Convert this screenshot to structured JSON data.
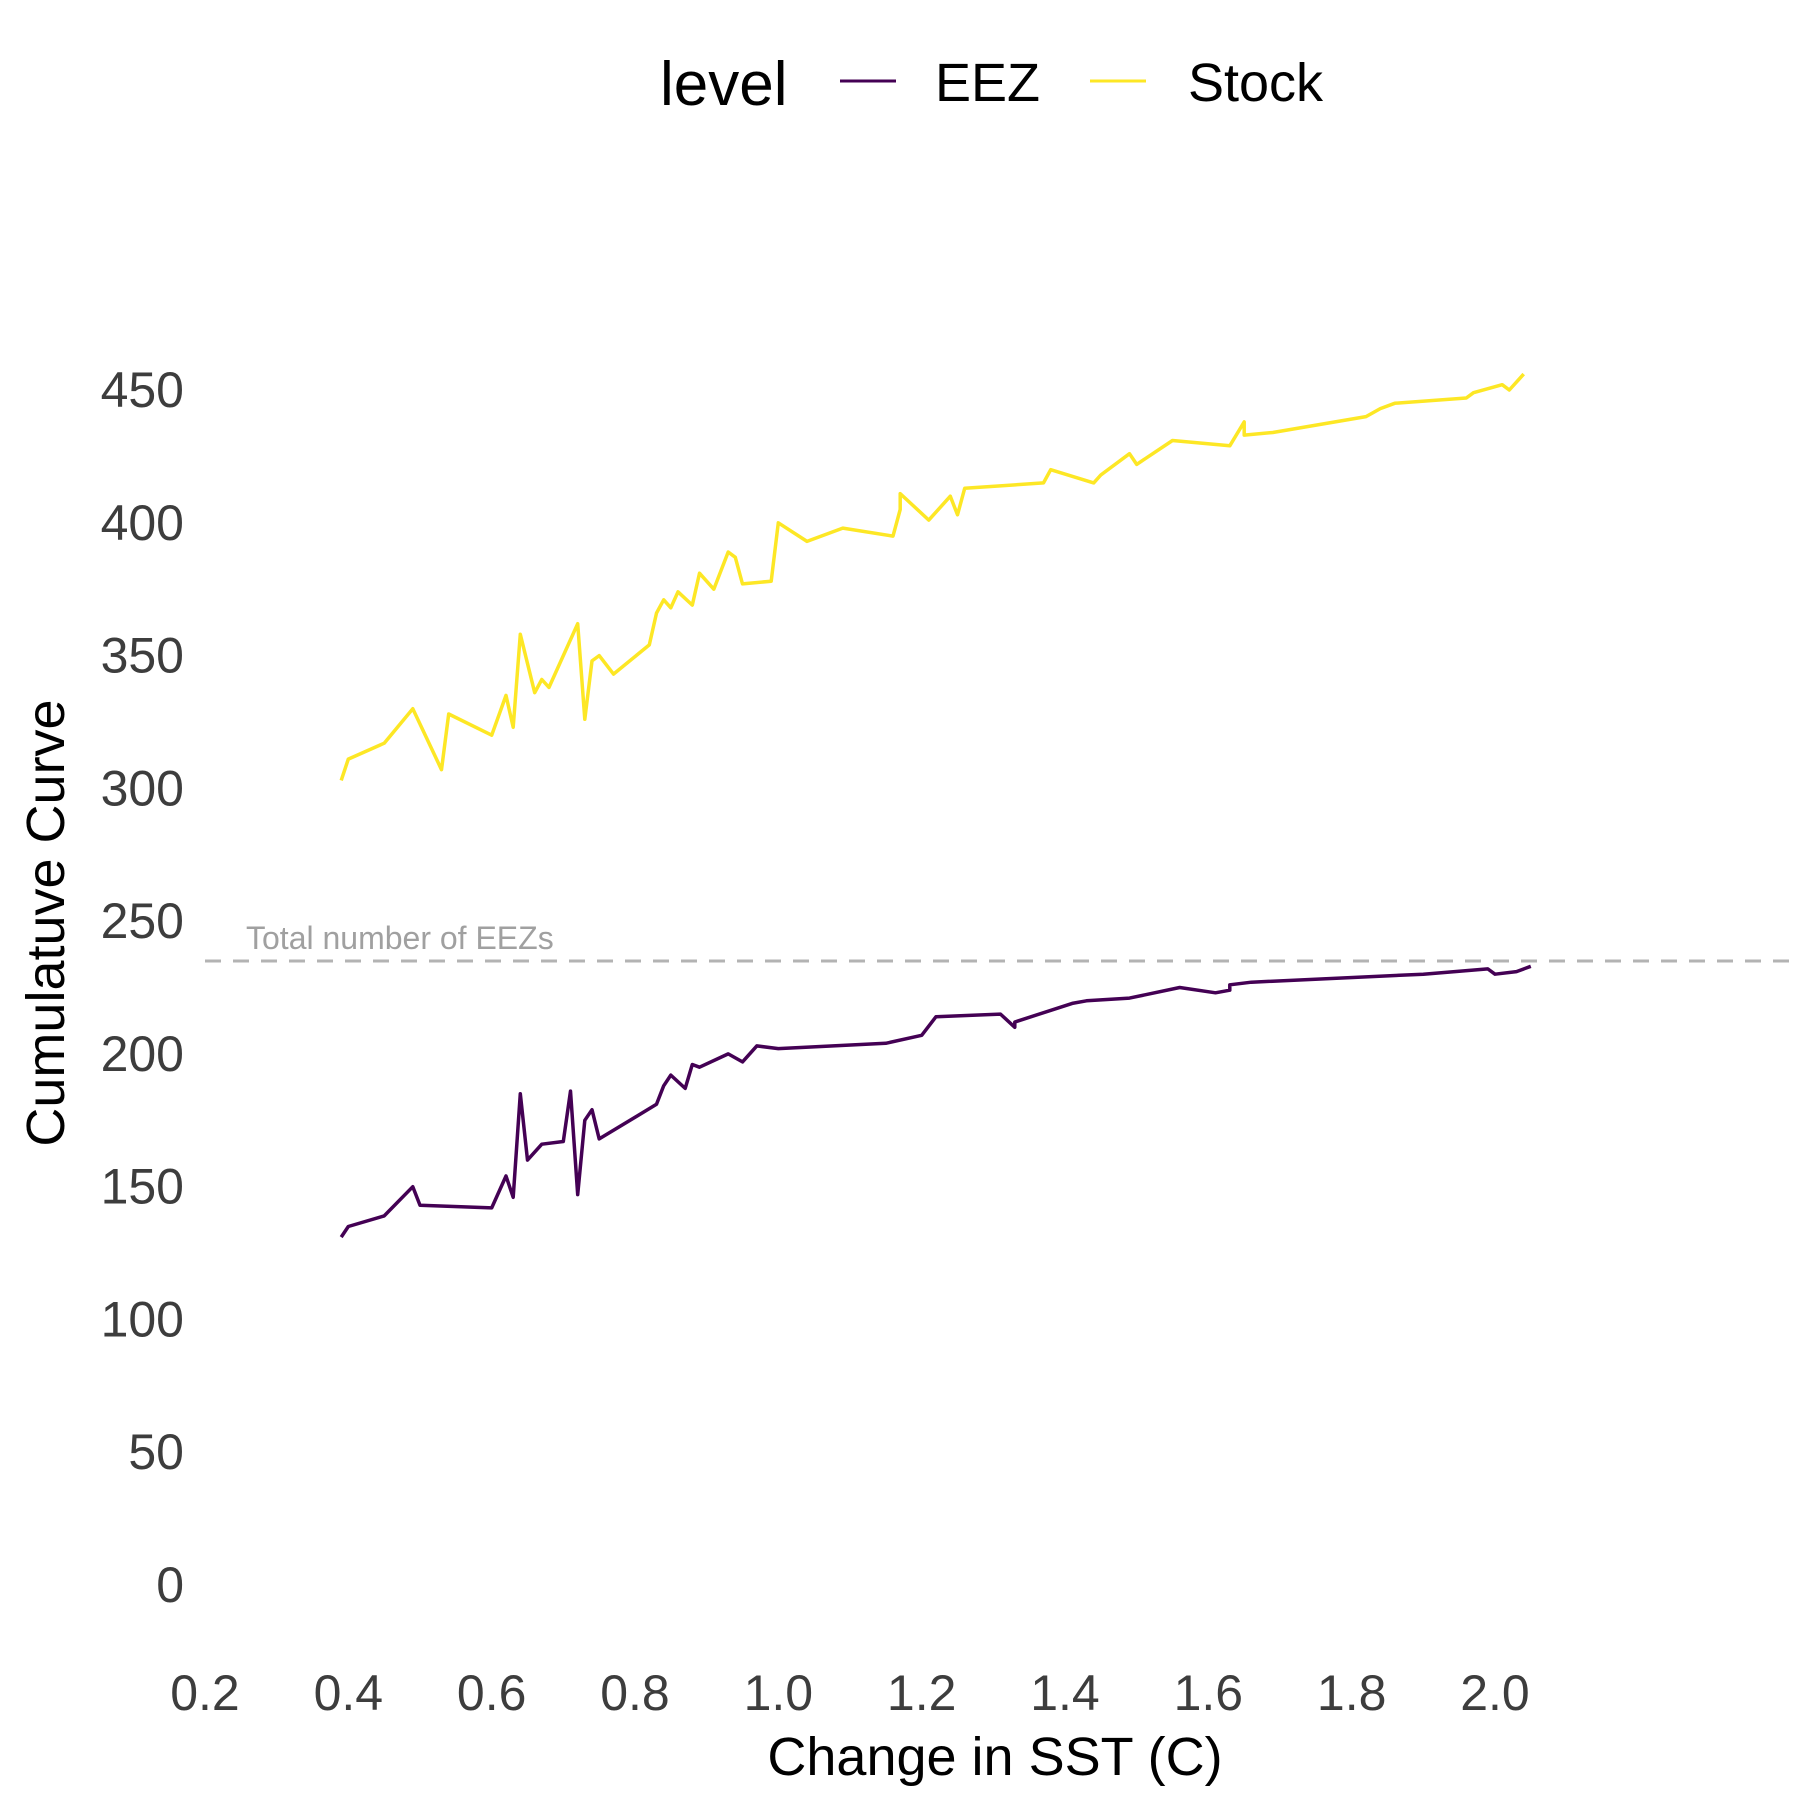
{
  "chart_data": {
    "type": "line",
    "xlabel": "Change in SST (C)",
    "ylabel": "Cumulatuve Curve",
    "xlim": [
      0.2,
      2.0
    ],
    "ylim": [
      0,
      450
    ],
    "xticks": [
      "0.2",
      "0.4",
      "0.6",
      "0.8",
      "1.0",
      "1.2",
      "1.4",
      "1.6",
      "1.8",
      "2.0"
    ],
    "yticks": [
      "0",
      "50",
      "100",
      "150",
      "200",
      "250",
      "300",
      "350",
      "400",
      "450"
    ],
    "grid": false,
    "legend": {
      "title": "level",
      "position": "top"
    },
    "reference_line": {
      "y": 235,
      "label": "Total number of EEZs",
      "style": "dashed",
      "color": "#b3b3b3"
    },
    "series": [
      {
        "name": "EEZ",
        "color": "#440154",
        "x": [
          0.39,
          0.4,
          0.45,
          0.49,
          0.5,
          0.6,
          0.62,
          0.63,
          0.64,
          0.65,
          0.67,
          0.7,
          0.71,
          0.72,
          0.73,
          0.74,
          0.75,
          0.83,
          0.84,
          0.85,
          0.87,
          0.88,
          0.89,
          0.93,
          0.95,
          0.97,
          1.0,
          1.15,
          1.2,
          1.22,
          1.31,
          1.33,
          1.33,
          1.41,
          1.43,
          1.49,
          1.56,
          1.61,
          1.63,
          1.63,
          1.66,
          1.9,
          1.99,
          2.0,
          2.03,
          2.05
        ],
        "y": [
          131,
          135,
          139,
          150,
          143,
          142,
          154,
          146,
          185,
          160,
          166,
          167,
          186,
          147,
          175,
          179,
          168,
          181,
          188,
          192,
          187,
          196,
          195,
          200,
          197,
          203,
          202,
          204,
          207,
          214,
          215,
          210,
          212,
          219,
          220,
          221,
          225,
          223,
          224,
          226,
          227,
          230,
          232,
          230,
          231,
          233
        ]
      },
      {
        "name": "Stock",
        "color": "#fde725",
        "x": [
          0.39,
          0.4,
          0.45,
          0.49,
          0.53,
          0.54,
          0.6,
          0.62,
          0.63,
          0.64,
          0.66,
          0.67,
          0.68,
          0.72,
          0.73,
          0.74,
          0.75,
          0.77,
          0.82,
          0.83,
          0.84,
          0.85,
          0.86,
          0.88,
          0.89,
          0.91,
          0.93,
          0.94,
          0.95,
          0.99,
          1.0,
          1.04,
          1.09,
          1.16,
          1.17,
          1.17,
          1.21,
          1.24,
          1.25,
          1.26,
          1.37,
          1.38,
          1.44,
          1.45,
          1.49,
          1.5,
          1.55,
          1.63,
          1.65,
          1.65,
          1.69,
          1.82,
          1.84,
          1.86,
          1.96,
          1.97,
          2.01,
          2.02,
          2.04
        ],
        "y": [
          303,
          311,
          317,
          330,
          307,
          328,
          320,
          335,
          323,
          358,
          336,
          341,
          338,
          362,
          326,
          348,
          350,
          343,
          354,
          366,
          371,
          368,
          374,
          369,
          381,
          375,
          389,
          387,
          377,
          378,
          400,
          393,
          398,
          395,
          405,
          411,
          401,
          410,
          403,
          413,
          415,
          420,
          415,
          418,
          426,
          422,
          431,
          429,
          438,
          433,
          434,
          440,
          443,
          445,
          447,
          449,
          452,
          450,
          456
        ]
      }
    ]
  }
}
